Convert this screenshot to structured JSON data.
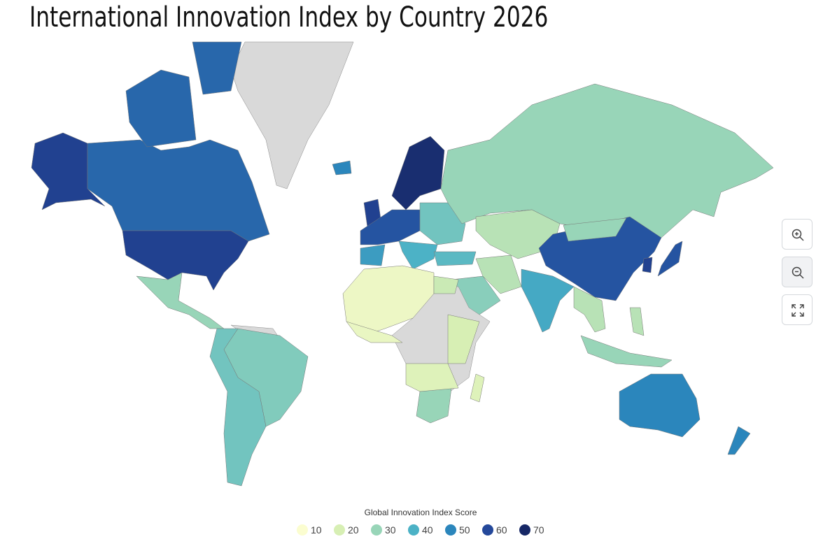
{
  "title": "International Innovation Index by Country 2026",
  "map": {
    "legend": {
      "title": "Global Innovation Index Score",
      "stops": [
        {
          "value": 10,
          "color": "#fbfdd0"
        },
        {
          "value": 20,
          "color": "#d7efb4"
        },
        {
          "value": 30,
          "color": "#98d5b8"
        },
        {
          "value": 40,
          "color": "#4cb2c6"
        },
        {
          "value": 50,
          "color": "#2b86bc"
        },
        {
          "value": 60,
          "color": "#24489a"
        },
        {
          "value": 70,
          "color": "#162766"
        }
      ]
    },
    "values": [
      62,
      55,
      55,
      55,
      62,
      30,
      33,
      35,
      68,
      62,
      58,
      45,
      35,
      40,
      38,
      50,
      30,
      25,
      58,
      30,
      58,
      62,
      32,
      25,
      42,
      25,
      30,
      25,
      50,
      50,
      14,
      15,
      20,
      30,
      18,
      18,
      22
    ]
  }
}
